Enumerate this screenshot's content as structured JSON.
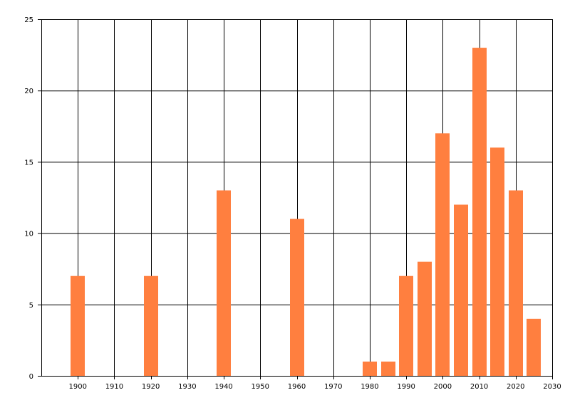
{
  "chart_data": {
    "type": "bar",
    "x": [
      1900,
      1920,
      1940,
      1960,
      1980,
      1985,
      1990,
      1995,
      2000,
      2005,
      2010,
      2015,
      2020,
      2025
    ],
    "values": [
      7,
      7,
      13,
      11,
      1,
      1,
      7,
      8,
      17,
      12,
      23,
      16,
      13,
      4
    ],
    "xlim": [
      1890,
      2030
    ],
    "ylim": [
      0,
      25
    ],
    "x_ticks": [
      1900,
      1910,
      1920,
      1930,
      1940,
      1950,
      1960,
      1970,
      1980,
      1990,
      2000,
      2010,
      2020,
      2030
    ],
    "y_ticks": [
      0,
      5,
      10,
      15,
      20,
      25
    ],
    "grid": true,
    "bar_color": "#ff7f3f",
    "title": "",
    "xlabel": "",
    "ylabel": ""
  }
}
